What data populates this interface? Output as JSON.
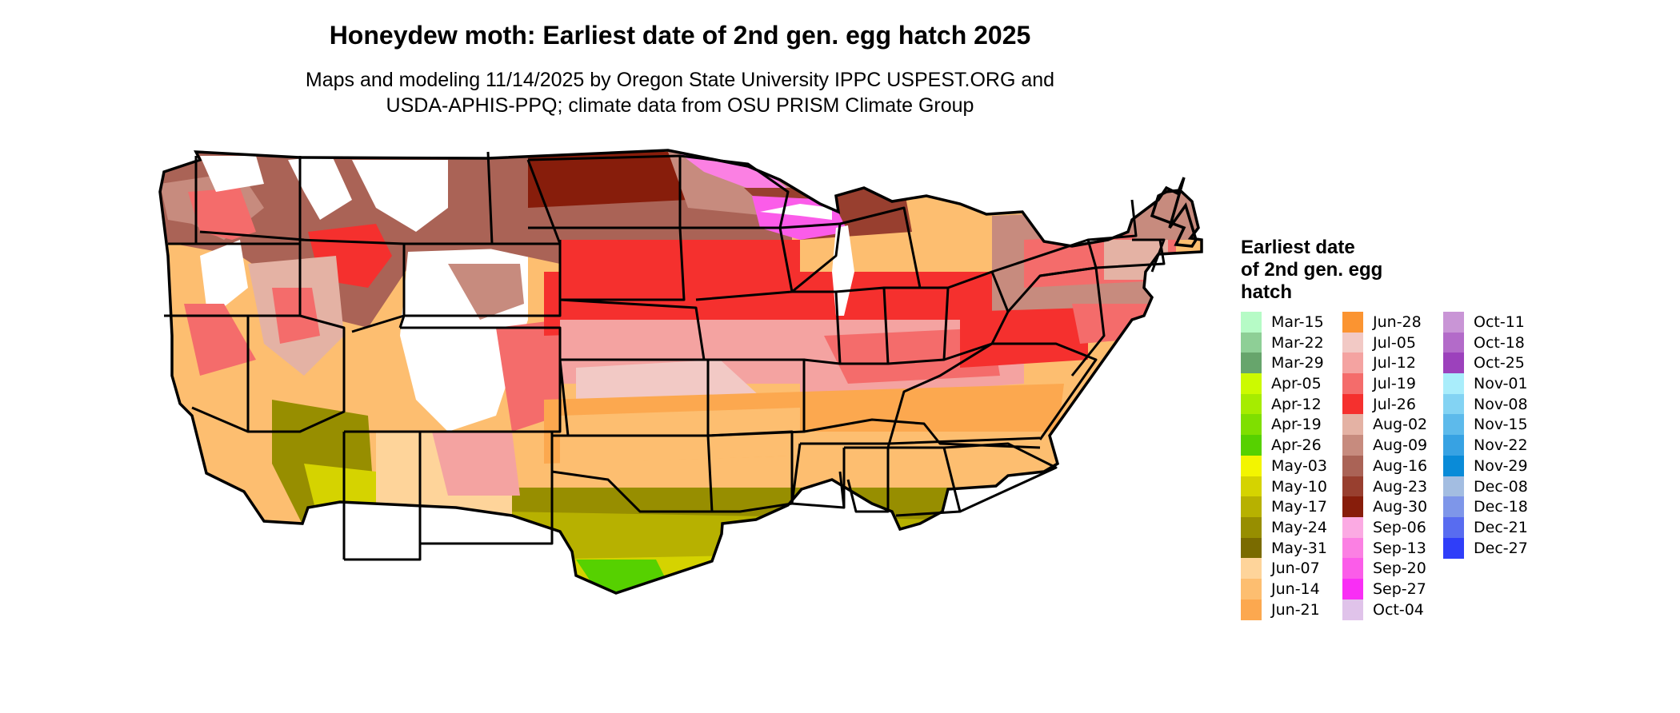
{
  "header": {
    "title": "Honeydew moth: Earliest date of 2nd gen. egg hatch 2025",
    "subtitle_line1": "Maps and modeling 11/14/2025 by Oregon State University IPPC USPEST.ORG and",
    "subtitle_line2": "USDA-APHIS-PPQ; climate data from OSU PRISM Climate Group"
  },
  "legend": {
    "title_line1": "Earliest date",
    "title_line2": "of 2nd gen. egg",
    "title_line3": "hatch",
    "columns": [
      [
        {
          "label": "Mar-15",
          "color": "#b6fbc6"
        },
        {
          "label": "Mar-22",
          "color": "#8ecf96"
        },
        {
          "label": "Mar-29",
          "color": "#67a56c"
        },
        {
          "label": "Apr-05",
          "color": "#ccfa00"
        },
        {
          "label": "Apr-12",
          "color": "#a6ec00"
        },
        {
          "label": "Apr-19",
          "color": "#7fdf00"
        },
        {
          "label": "Apr-26",
          "color": "#56d100"
        },
        {
          "label": "May-03",
          "color": "#f3f500"
        },
        {
          "label": "May-10",
          "color": "#d5d300"
        },
        {
          "label": "May-17",
          "color": "#b7b100"
        },
        {
          "label": "May-24",
          "color": "#978e00"
        },
        {
          "label": "May-31",
          "color": "#7a6b00"
        },
        {
          "label": "Jun-07",
          "color": "#fed49a"
        },
        {
          "label": "Jun-14",
          "color": "#fdbe70"
        },
        {
          "label": "Jun-21",
          "color": "#fca84f"
        }
      ],
      [
        {
          "label": "Jun-28",
          "color": "#fb9431"
        },
        {
          "label": "Jul-05",
          "color": "#f2c9c5"
        },
        {
          "label": "Jul-12",
          "color": "#f4a3a1"
        },
        {
          "label": "Jul-19",
          "color": "#f46c6b"
        },
        {
          "label": "Jul-26",
          "color": "#f5302e"
        },
        {
          "label": "Aug-02",
          "color": "#e4b2a4"
        },
        {
          "label": "Aug-09",
          "color": "#c78b7e"
        },
        {
          "label": "Aug-16",
          "color": "#aa6356"
        },
        {
          "label": "Aug-23",
          "color": "#983f2f"
        },
        {
          "label": "Aug-30",
          "color": "#871d0b"
        },
        {
          "label": "Sep-06",
          "color": "#fbaae3"
        },
        {
          "label": "Sep-13",
          "color": "#fb80e3"
        },
        {
          "label": "Sep-20",
          "color": "#fb5ce9"
        },
        {
          "label": "Sep-27",
          "color": "#f92ef5"
        },
        {
          "label": "Oct-04",
          "color": "#e0c3ea"
        }
      ],
      [
        {
          "label": "Oct-11",
          "color": "#c995d6"
        },
        {
          "label": "Oct-18",
          "color": "#b36bc9"
        },
        {
          "label": "Oct-25",
          "color": "#9c41bc"
        },
        {
          "label": "Nov-01",
          "color": "#a9edfb"
        },
        {
          "label": "Nov-08",
          "color": "#83d3f3"
        },
        {
          "label": "Nov-15",
          "color": "#5dbaeb"
        },
        {
          "label": "Nov-22",
          "color": "#37a2e3"
        },
        {
          "label": "Nov-29",
          "color": "#0a8bd8"
        },
        {
          "label": "Dec-08",
          "color": "#a3bde1"
        },
        {
          "label": "Dec-18",
          "color": "#7e96e9"
        },
        {
          "label": "Dec-21",
          "color": "#586cf0"
        },
        {
          "label": "Dec-27",
          "color": "#2f3ef9"
        }
      ]
    ]
  }
}
